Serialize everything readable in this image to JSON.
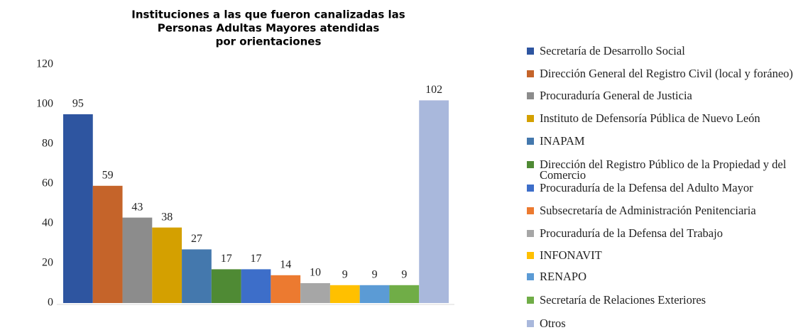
{
  "chart_data": {
    "type": "bar",
    "title": [
      "Instituciones a las que fueron canalizadas las",
      "Personas Adultas Mayores atendidas",
      "por orientaciones"
    ],
    "categories": [
      null
    ],
    "series": [
      {
        "name": "Secretaría de Desarrollo Social",
        "color": "#2e55a0",
        "values": [
          95
        ]
      },
      {
        "name": "Dirección General del Registro Civil (local y foráneo)",
        "color": "#c5642a",
        "values": [
          59
        ]
      },
      {
        "name": "Procuraduría General de Justicia",
        "color": "#8c8c8c",
        "values": [
          43
        ]
      },
      {
        "name": "Instituto de Defensoría Pública de Nuevo León",
        "color": "#d4a000",
        "values": [
          38
        ]
      },
      {
        "name": "INAPAM",
        "color": "#4478ad",
        "values": [
          27
        ]
      },
      {
        "name": "Dirección del Registro Público de la Propiedad y del Comercio",
        "color": "#4f8a34",
        "values": [
          17
        ]
      },
      {
        "name": "Procuraduría de la Defensa del Adulto Mayor",
        "color": "#3d6ec9",
        "values": [
          17
        ]
      },
      {
        "name": "Subsecretaría de Administración Penitenciaria",
        "color": "#ec7a30",
        "values": [
          14
        ]
      },
      {
        "name": "Procuraduría de la Defensa del Trabajo",
        "color": "#a6a6a6",
        "values": [
          10
        ]
      },
      {
        "name": "INFONAVIT",
        "color": "#ffc000",
        "values": [
          9
        ]
      },
      {
        "name": "RENAPO",
        "color": "#5b9bd5",
        "values": [
          9
        ]
      },
      {
        "name": "Secretaría de Relaciones Exteriores",
        "color": "#70ad47",
        "values": [
          9
        ]
      },
      {
        "name": "Otros",
        "color": "#a9b8dc",
        "values": [
          102
        ]
      }
    ],
    "ylim": [
      0,
      120
    ],
    "yticks": [
      0,
      20,
      40,
      60,
      80,
      100,
      120
    ],
    "grid": false,
    "legend": "right"
  }
}
